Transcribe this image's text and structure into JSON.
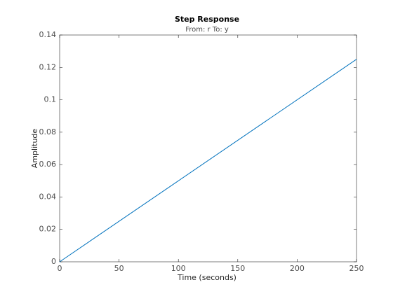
{
  "chart_data": {
    "type": "line",
    "title": "Step Response",
    "subtitle": "From: r  To: y",
    "xlabel": "Time (seconds)",
    "ylabel": "Amplitude",
    "x": [
      0,
      250
    ],
    "series": [
      {
        "name": "y",
        "color": "#0072bd",
        "values": [
          0,
          0.125
        ]
      }
    ],
    "xlim": [
      0,
      250
    ],
    "xticks": [
      0,
      50,
      100,
      150,
      200,
      250
    ],
    "ylim": [
      0,
      0.14
    ],
    "yticks": [
      0,
      0.02,
      0.04,
      0.06,
      0.08,
      0.1,
      0.12,
      0.14
    ],
    "grid": false,
    "legend": false
  }
}
